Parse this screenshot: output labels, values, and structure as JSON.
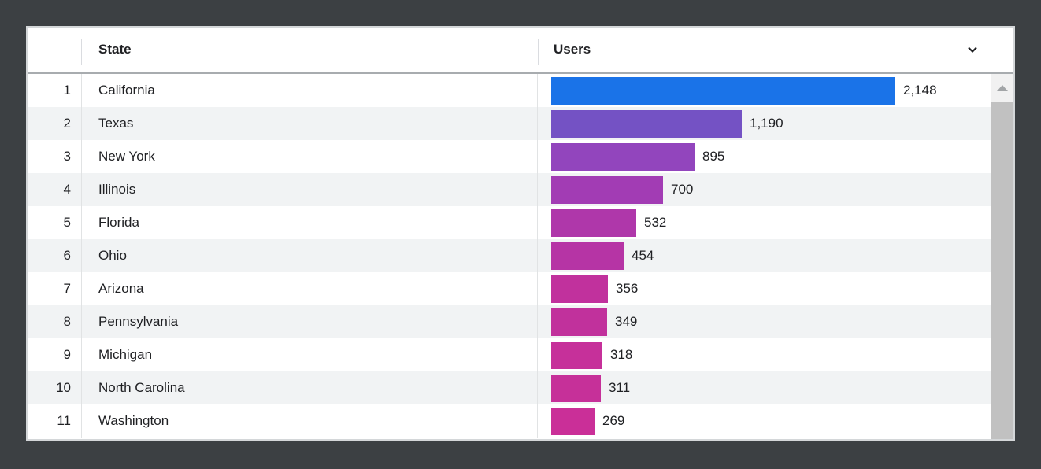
{
  "chart_data": {
    "type": "table",
    "title": "",
    "columns": [
      {
        "label": "State"
      },
      {
        "label": "Users",
        "sorted": "descending",
        "visualization": "horizontal-bar"
      }
    ],
    "categories": [
      "California",
      "Texas",
      "New York",
      "Illinois",
      "Florida",
      "Ohio",
      "Arizona",
      "Pennsylvania",
      "Michigan",
      "North Carolina",
      "Washington"
    ],
    "values": [
      2148,
      1190,
      895,
      700,
      532,
      454,
      356,
      349,
      318,
      311,
      269
    ],
    "max_value": 2148,
    "rows": [
      {
        "rank": "1",
        "state": "California",
        "users": 2148,
        "users_label": "2,148",
        "bar_color": "#1a73e8"
      },
      {
        "rank": "2",
        "state": "Texas",
        "users": 1190,
        "users_label": "1,190",
        "bar_color": "#7452c4"
      },
      {
        "rank": "3",
        "state": "New York",
        "users": 895,
        "users_label": "895",
        "bar_color": "#9245bd"
      },
      {
        "rank": "4",
        "state": "Illinois",
        "users": 700,
        "users_label": "700",
        "bar_color": "#a23cb4"
      },
      {
        "rank": "5",
        "state": "Florida",
        "users": 532,
        "users_label": "532",
        "bar_color": "#af37aa"
      },
      {
        "rank": "6",
        "state": "Ohio",
        "users": 454,
        "users_label": "454",
        "bar_color": "#b634a5"
      },
      {
        "rank": "7",
        "state": "Arizona",
        "users": 356,
        "users_label": "356",
        "bar_color": "#c1319d"
      },
      {
        "rank": "8",
        "state": "Pennsylvania",
        "users": 349,
        "users_label": "349",
        "bar_color": "#c1319c"
      },
      {
        "rank": "9",
        "state": "Michigan",
        "users": 318,
        "users_label": "318",
        "bar_color": "#c6309a"
      },
      {
        "rank": "10",
        "state": "North Carolina",
        "users": 311,
        "users_label": "311",
        "bar_color": "#c63099"
      },
      {
        "rank": "11",
        "state": "Washington",
        "users": 269,
        "users_label": "269",
        "bar_color": "#ca2f98"
      }
    ]
  },
  "header": {
    "state_label": "State",
    "users_label": "Users",
    "sort_icon": "chevron-down-icon"
  },
  "scrollbar": {
    "up_button_icon": "triangle-up-icon"
  },
  "colors": {
    "page_background": "#3c4043",
    "card_background": "#ffffff",
    "row_stripe": "#f1f3f4",
    "text": "#202124",
    "header_border": "#a8acaf",
    "card_border": "#d4d7d9",
    "column_divider": "#e1e3e4",
    "scrollbar_track": "#f1f1f1",
    "scrollbar_thumb": "#c1c1c1",
    "bar_color_max": "#1a73e8",
    "bar_color_min": "#ca2f98"
  }
}
